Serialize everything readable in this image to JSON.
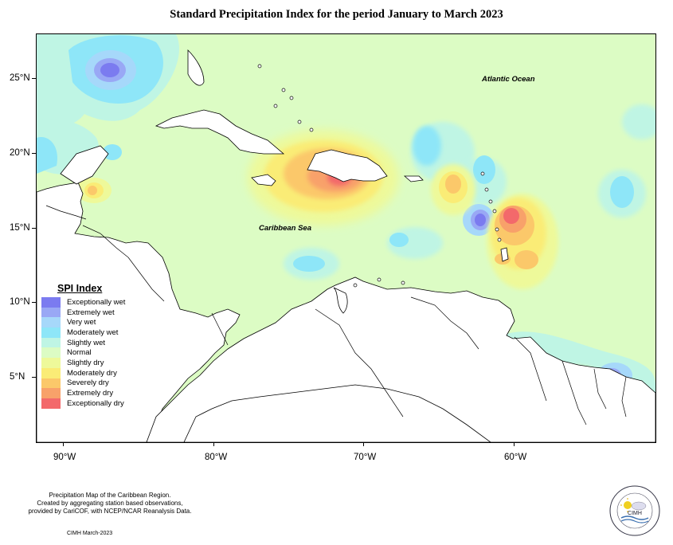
{
  "title": "Standard Precipitation Index for the period January to March 2023",
  "map": {
    "lat_labels": [
      "25°N",
      "20°N",
      "15°N",
      "10°N",
      "5°N"
    ],
    "lon_labels": [
      "90°W",
      "80°W",
      "70°W",
      "60°W"
    ],
    "ocean_labels": {
      "atlantic": "Atlantic Ocean",
      "caribbean": "Caribbean Sea"
    },
    "background_color": "#dcfcc4",
    "land_color": "#ffffff"
  },
  "legend": {
    "title": "SPI Index",
    "items": [
      {
        "label": "Exceptionally wet",
        "color": "#7b7bf0"
      },
      {
        "label": "Extremely wet",
        "color": "#99a8f5"
      },
      {
        "label": "Very wet",
        "color": "#a6d8fa"
      },
      {
        "label": "Moderately wet",
        "color": "#8ee6f8"
      },
      {
        "label": "Slightly wet",
        "color": "#bff5e4"
      },
      {
        "label": "Normal",
        "color": "#dcfcc4"
      },
      {
        "label": "Slightly dry",
        "color": "#eef99a"
      },
      {
        "label": "Moderately dry",
        "color": "#faec76"
      },
      {
        "label": "Severely dry",
        "color": "#fbc86a"
      },
      {
        "label": "Extremely dry",
        "color": "#f8a16a"
      },
      {
        "label": "Exceptionally dry",
        "color": "#f3696b"
      }
    ]
  },
  "footnote": {
    "line1": "Precipitation Map of the Caribbean Region.",
    "line2": "Created by aggregating station based observations,",
    "line3": "provided by CariCOF, with NCEP/NCAR Reanalysis Data."
  },
  "credit": "CIMH March-2023",
  "logo": {
    "text": "CIMH",
    "icon": "sun-cloud-logo-icon"
  }
}
